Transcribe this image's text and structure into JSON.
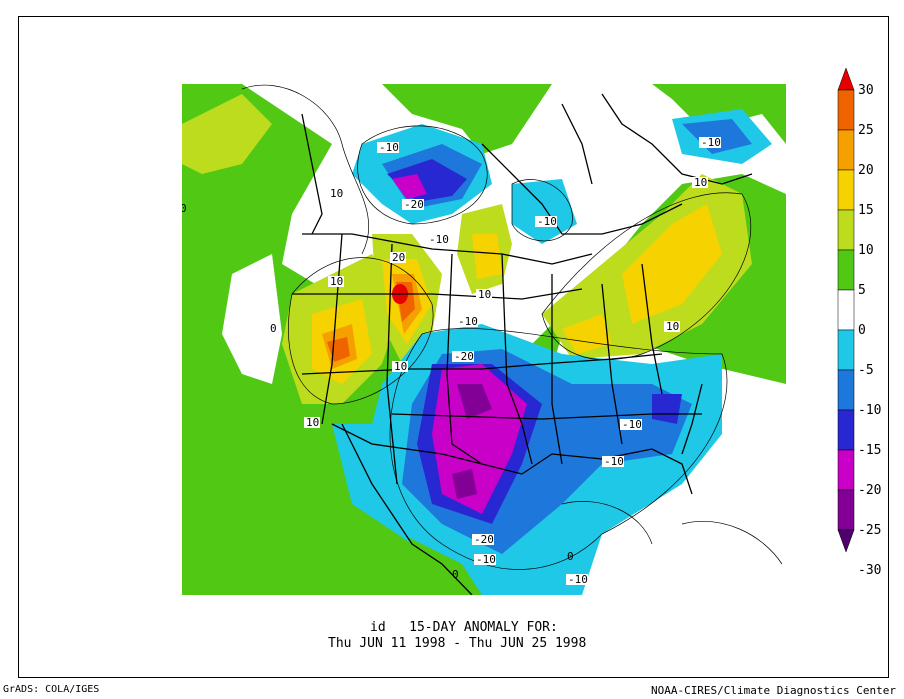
{
  "caption": {
    "line1": "id   15-DAY ANOMALY FOR:",
    "line2": "Thu JUN 11 1998 - Thu JUN 25 1998"
  },
  "footer": {
    "left": "GrADS: COLA/IGES",
    "right": "NOAA-CIRES/Climate Diagnostics Center"
  },
  "colorbar": {
    "levels": [
      "30",
      "25",
      "20",
      "15",
      "10",
      "5",
      "0",
      "-5",
      "-10",
      "-15",
      "-20",
      "-25",
      "-30"
    ],
    "colors": [
      "#e60000",
      "#f06400",
      "#f5a000",
      "#f5d200",
      "#bedc1e",
      "#50c814",
      "#ffffff",
      "#1ec8e6",
      "#1e78dc",
      "#2828d2",
      "#c800c8",
      "#820096",
      "#50006e"
    ]
  },
  "contour_labels": [
    "-10",
    "-20",
    "-10",
    "-10",
    "-10",
    "10",
    "10",
    "20",
    "10",
    "10",
    "-10",
    "-20",
    "10",
    "10",
    "-10",
    "-10",
    "-20",
    "-10",
    "-10",
    "10",
    "0",
    "0",
    "0",
    "0",
    "-10",
    "10",
    "-10"
  ]
}
